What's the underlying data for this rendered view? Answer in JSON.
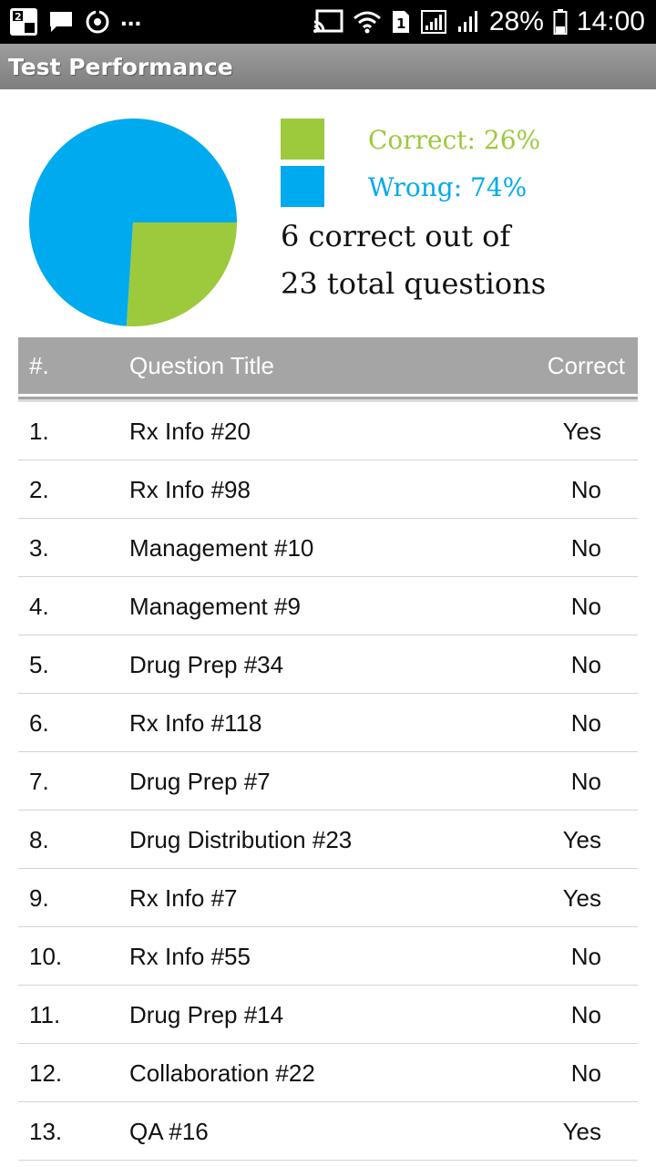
{
  "status_bar": {
    "dots": "...",
    "battery_percent": "28%",
    "time": "14:00",
    "sim_badge": "1"
  },
  "header": {
    "title": "Test Performance"
  },
  "summary": {
    "correct_percent": 26,
    "wrong_percent": 74,
    "correct_label": "Correct: 26%",
    "wrong_label": "Wrong: 74%",
    "correct_color": "#9cca3c",
    "wrong_color": "#00aaee",
    "line1": "6 correct out of",
    "line2": "23 total questions"
  },
  "table": {
    "headers": {
      "number": "#.",
      "title": "Question Title",
      "correct": "Correct"
    },
    "rows": [
      {
        "number": "1.",
        "title": "Rx Info #20",
        "correct": "Yes"
      },
      {
        "number": "2.",
        "title": "Rx Info #98",
        "correct": "No"
      },
      {
        "number": "3.",
        "title": "Management #10",
        "correct": "No"
      },
      {
        "number": "4.",
        "title": "Management #9",
        "correct": "No"
      },
      {
        "number": "5.",
        "title": "Drug Prep #34",
        "correct": "No"
      },
      {
        "number": "6.",
        "title": "Rx Info #118",
        "correct": "No"
      },
      {
        "number": "7.",
        "title": "Drug Prep #7",
        "correct": "No"
      },
      {
        "number": "8.",
        "title": "Drug Distribution #23",
        "correct": "Yes"
      },
      {
        "number": "9.",
        "title": "Rx Info #7",
        "correct": "Yes"
      },
      {
        "number": "10.",
        "title": "Rx Info #55",
        "correct": "No"
      },
      {
        "number": "11.",
        "title": "Drug Prep #14",
        "correct": "No"
      },
      {
        "number": "12.",
        "title": "Collaboration #22",
        "correct": "No"
      },
      {
        "number": "13.",
        "title": "QA #16",
        "correct": "Yes"
      }
    ]
  }
}
